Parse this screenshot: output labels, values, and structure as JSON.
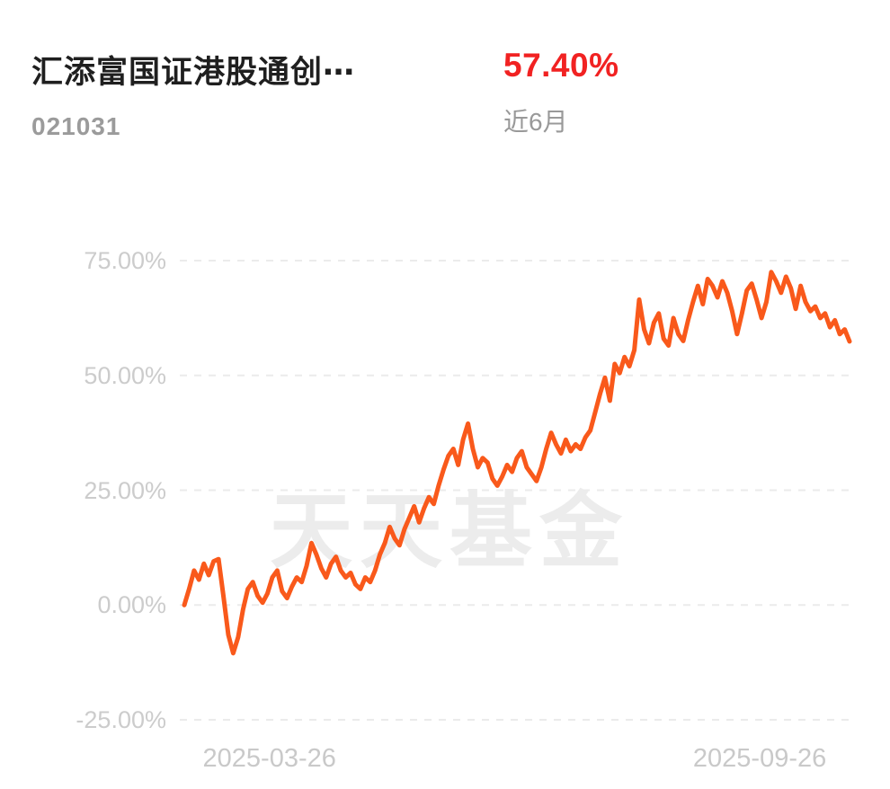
{
  "header": {
    "title": "汇添富国证港股通创⋯",
    "code": "021031",
    "return_value": "57.40%",
    "period_label": "近6月"
  },
  "watermark": "天天基金",
  "colors": {
    "line": "#f9591b",
    "return_text": "#f12222",
    "grid": "#ebebeb",
    "axis_text": "#cccccc",
    "watermark_text": "#ececec"
  },
  "chart_data": {
    "type": "line",
    "title": "汇添富国证港股通创⋯ 近6月收益走势",
    "unit": "%",
    "ylim": [
      -25,
      75
    ],
    "y_ticks": [
      75,
      50,
      25,
      0,
      -25
    ],
    "y_tick_labels": [
      "75.00%",
      "50.00%",
      "25.00%",
      "0.00%",
      "-25.00%"
    ],
    "x_tick_labels": [
      "2025-03-26",
      "2025-09-26"
    ],
    "x_tick_positions": [
      0.128,
      0.865
    ],
    "grid": "dashed-horizontal",
    "legend": "off",
    "end_value": 57.4,
    "values": [
      0.0,
      3.5,
      7.5,
      5.5,
      9.0,
      6.5,
      9.5,
      10.0,
      2.0,
      -6.5,
      -10.5,
      -7.0,
      -1.0,
      3.5,
      5.0,
      2.0,
      0.5,
      2.5,
      6.0,
      7.5,
      3.0,
      1.5,
      4.0,
      6.0,
      5.0,
      8.5,
      13.5,
      11.0,
      8.0,
      6.0,
      9.0,
      10.5,
      7.5,
      6.0,
      7.0,
      4.5,
      3.5,
      6.0,
      5.0,
      7.5,
      11.0,
      13.5,
      17.0,
      14.5,
      13.0,
      16.5,
      19.0,
      21.5,
      18.0,
      21.0,
      23.5,
      22.0,
      26.0,
      29.5,
      32.5,
      34.0,
      30.5,
      36.0,
      39.5,
      34.0,
      30.0,
      32.0,
      31.0,
      27.5,
      26.0,
      28.0,
      30.5,
      29.0,
      32.0,
      33.5,
      30.0,
      28.5,
      27.0,
      30.0,
      34.0,
      37.5,
      35.0,
      33.0,
      36.0,
      33.5,
      35.0,
      34.0,
      36.5,
      38.0,
      42.0,
      46.0,
      49.5,
      44.5,
      52.5,
      50.5,
      54.0,
      52.0,
      55.5,
      66.5,
      60.0,
      57.0,
      61.5,
      63.5,
      58.0,
      56.5,
      62.5,
      59.0,
      57.5,
      62.0,
      66.0,
      69.5,
      65.5,
      71.0,
      69.5,
      67.0,
      70.5,
      68.0,
      64.0,
      59.0,
      63.5,
      68.5,
      70.0,
      66.5,
      62.5,
      66.0,
      72.5,
      70.5,
      68.0,
      71.5,
      69.0,
      64.5,
      69.5,
      66.0,
      64.0,
      65.0,
      62.5,
      63.5,
      60.5,
      62.0,
      59.0,
      60.0,
      57.4
    ]
  }
}
